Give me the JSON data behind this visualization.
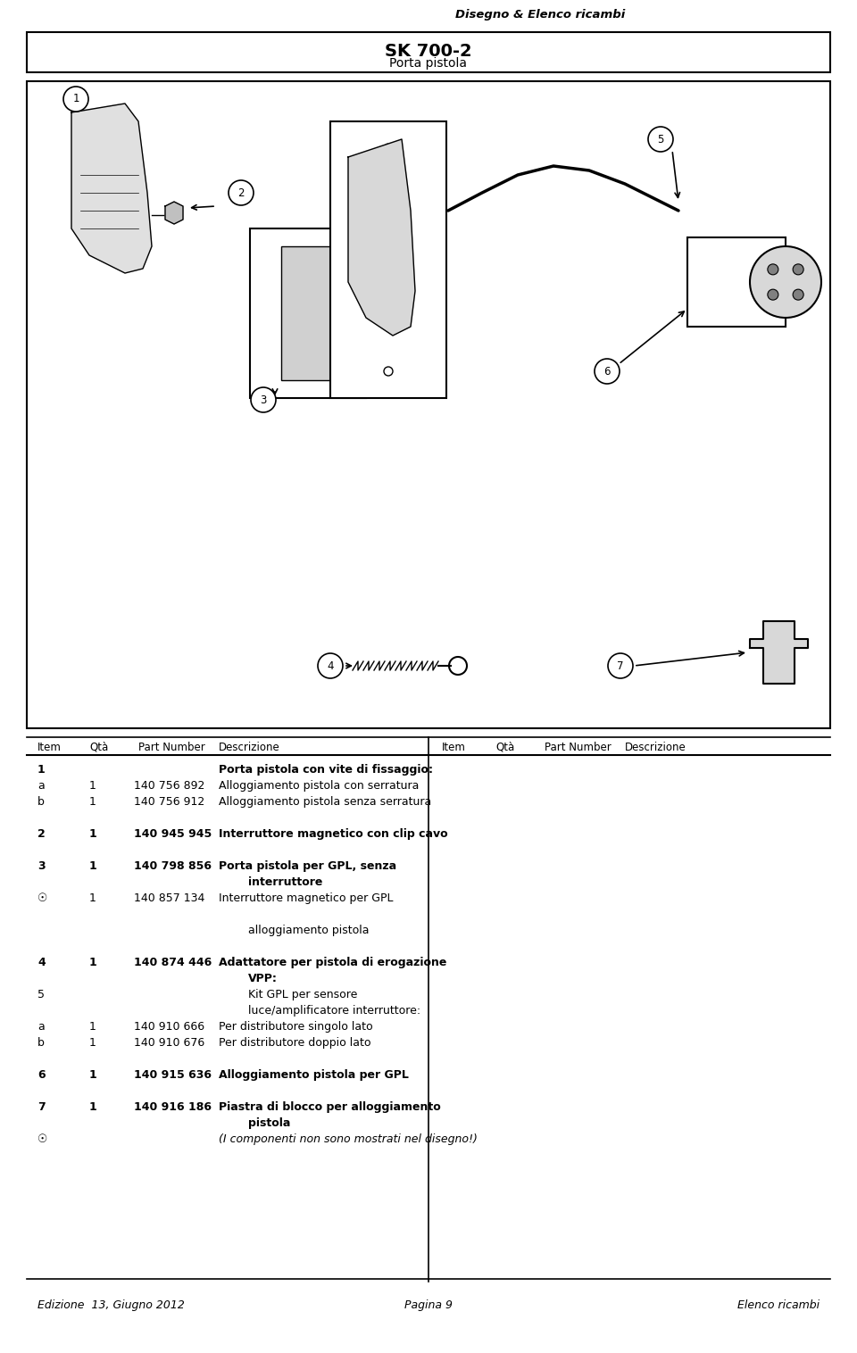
{
  "title_main": "SK 700-2",
  "title_sub": "Porta pistola",
  "header_right": "Disegno & Elenco ricambi",
  "table_header_left": [
    "Item",
    "Qtà",
    "Part Number",
    "Descrizione"
  ],
  "table_header_right": [
    "Item",
    "Qtà",
    "Part Number",
    "Descrizione"
  ],
  "rows": [
    {
      "item": "1",
      "qty": "",
      "part": "",
      "desc": "Porta pistola con vite di fissaggio:",
      "bold": true,
      "indent": 0
    },
    {
      "item": "a",
      "qty": "1",
      "part": "140 756 892",
      "desc": "Alloggiamento pistola con serratura",
      "bold": false,
      "indent": 0
    },
    {
      "item": "b",
      "qty": "1",
      "part": "140 756 912",
      "desc": "Alloggiamento pistola senza serratura",
      "bold": false,
      "indent": 0
    },
    {
      "item": "",
      "qty": "",
      "part": "",
      "desc": "",
      "bold": false,
      "indent": 0
    },
    {
      "item": "2",
      "qty": "1",
      "part": "140 945 945",
      "desc": "Interruttore magnetico con clip cavo",
      "bold": true,
      "indent": 0
    },
    {
      "item": "",
      "qty": "",
      "part": "",
      "desc": "",
      "bold": false,
      "indent": 0
    },
    {
      "item": "3",
      "qty": "1",
      "part": "140 798 856",
      "desc": "Porta pistola per GPL, senza",
      "bold": true,
      "indent": 0
    },
    {
      "item": "",
      "qty": "",
      "part": "",
      "desc": "interruttore",
      "bold": true,
      "indent": 1
    },
    {
      "item": "★",
      "qty": "1",
      "part": "140 857 134",
      "desc": "Interruttore magnetico per GPL",
      "bold": false,
      "indent": 0
    },
    {
      "item": "",
      "qty": "",
      "part": "",
      "desc": "",
      "bold": false,
      "indent": 0
    },
    {
      "item": "",
      "qty": "",
      "part": "",
      "desc": "alloggiamento pistola",
      "bold": false,
      "indent": 1
    },
    {
      "item": "",
      "qty": "",
      "part": "",
      "desc": "",
      "bold": false,
      "indent": 0
    },
    {
      "item": "4",
      "qty": "1",
      "part": "140 874 446",
      "desc": "Adattatore per pistola di erogazione",
      "bold": true,
      "indent": 0
    },
    {
      "item": "",
      "qty": "",
      "part": "",
      "desc": "VPP:",
      "bold": true,
      "indent": 1
    },
    {
      "item": "5",
      "qty": "",
      "part": "",
      "desc": "Kit GPL per sensore",
      "bold": false,
      "indent": 1
    },
    {
      "item": "",
      "qty": "",
      "part": "",
      "desc": "luce/amplificatore interruttore:",
      "bold": false,
      "indent": 1
    },
    {
      "item": "a",
      "qty": "1",
      "part": "140 910 666",
      "desc": "Per distributore singolo lato",
      "bold": false,
      "indent": 0
    },
    {
      "item": "b",
      "qty": "1",
      "part": "140 910 676",
      "desc": "Per distributore doppio lato",
      "bold": false,
      "indent": 0
    },
    {
      "item": "",
      "qty": "",
      "part": "",
      "desc": "",
      "bold": false,
      "indent": 0
    },
    {
      "item": "6",
      "qty": "1",
      "part": "140 915 636",
      "desc": "Alloggiamento pistola per GPL",
      "bold": true,
      "indent": 0
    },
    {
      "item": "",
      "qty": "",
      "part": "",
      "desc": "",
      "bold": false,
      "indent": 0
    },
    {
      "item": "7",
      "qty": "1",
      "part": "140 916 186",
      "desc": "Piastra di blocco per alloggiamento",
      "bold": true,
      "indent": 0
    },
    {
      "item": "",
      "qty": "",
      "part": "",
      "desc": "pistola",
      "bold": true,
      "indent": 1
    },
    {
      "item": "★",
      "qty": "",
      "part": "",
      "desc": "(I componenti non sono mostrati nel disegno!)",
      "bold": false,
      "indent": 0,
      "italic": true
    }
  ],
  "footer_left": "Edizione  13, Giugno 2012",
  "footer_center": "Pagina 9",
  "footer_right": "Elenco ricambi",
  "bg_color": "#ffffff",
  "text_color": "#000000",
  "border_color": "#000000"
}
